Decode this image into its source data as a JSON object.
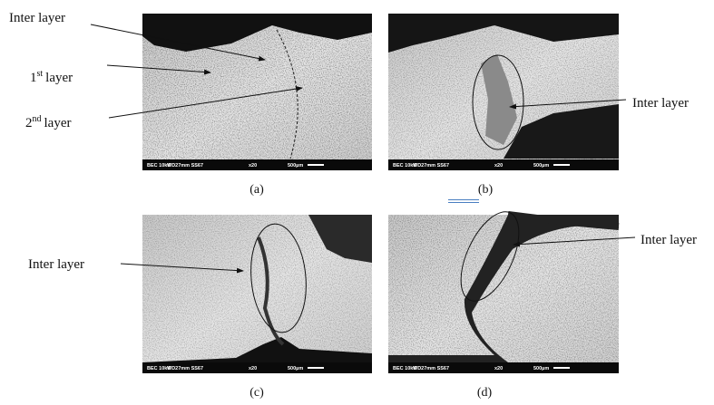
{
  "figure": {
    "panels": [
      {
        "caption": "(a)"
      },
      {
        "caption": "(b)"
      },
      {
        "caption": "(c)"
      },
      {
        "caption": "(d)"
      }
    ],
    "info_bar": [
      "BEC 10kV",
      "WD27mm SS67",
      "x20",
      "500µm"
    ],
    "annotations": {
      "a_inter": "Inter layer",
      "a_first": {
        "number": "1",
        "sup": "st",
        "text": "layer"
      },
      "a_second": {
        "number": "2",
        "sup": "nd",
        "text": "layer"
      },
      "b_inter": "Inter layer",
      "c_inter": "Inter layer",
      "d_inter": "Inter layer"
    }
  }
}
